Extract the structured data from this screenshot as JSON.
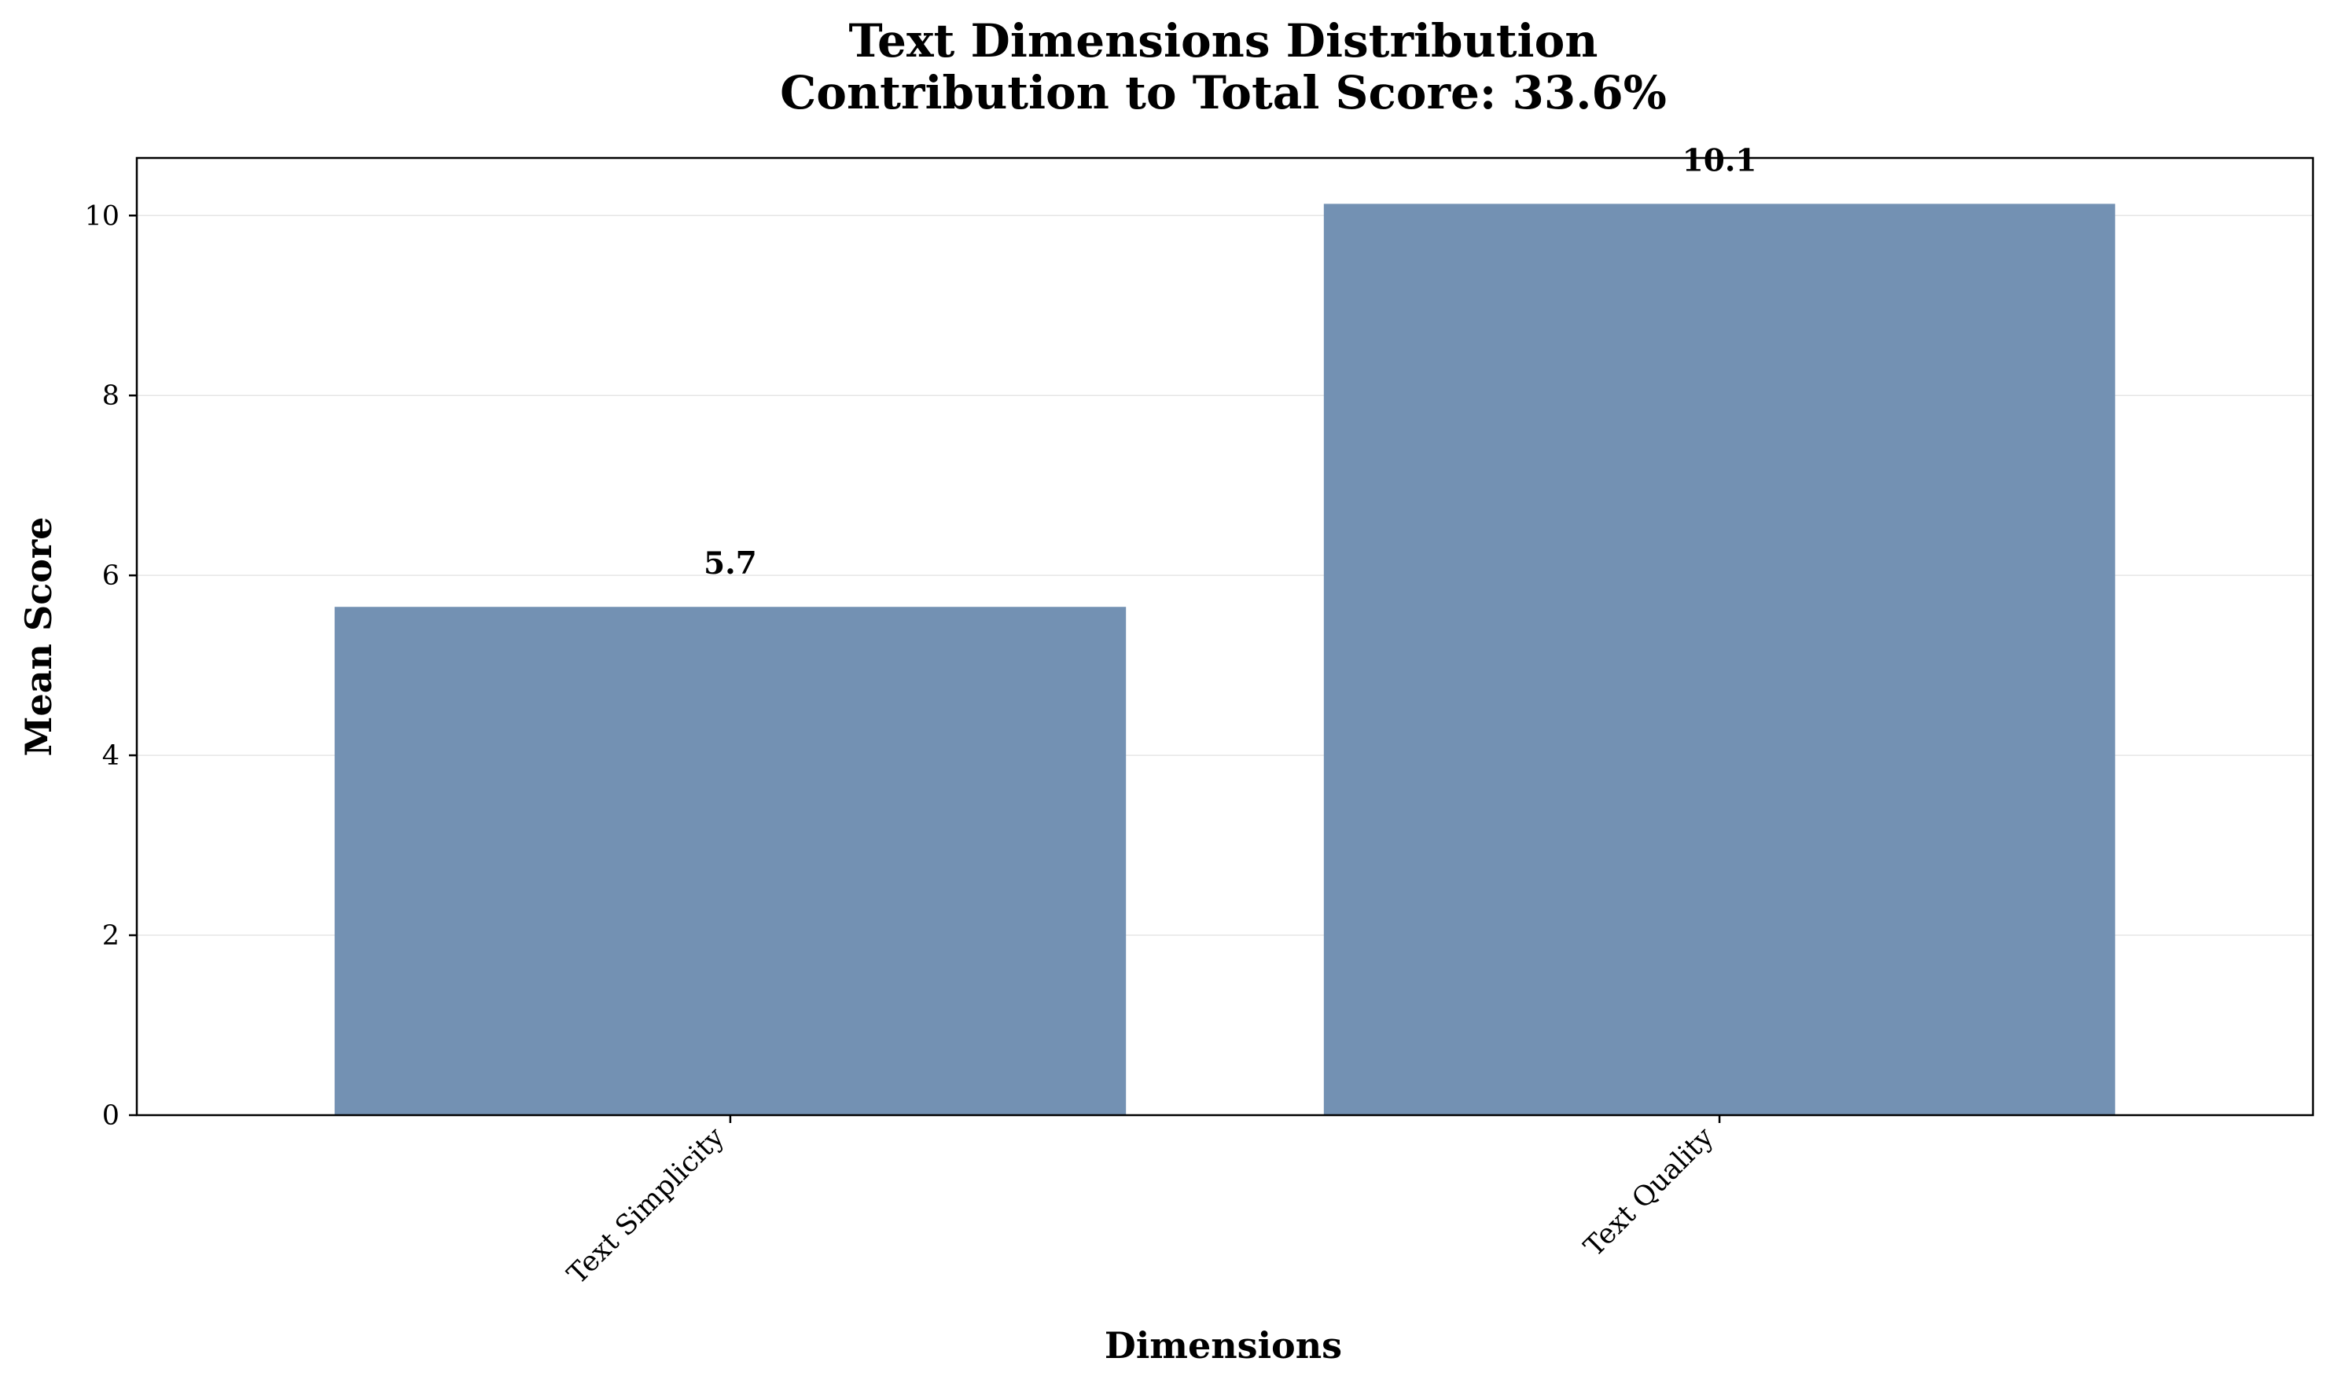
{
  "chart_data": {
    "type": "bar",
    "title": "Text Dimensions Distribution",
    "subtitle": "Contribution to Total Score: 33.6%",
    "xlabel": "Dimensions",
    "ylabel": "Mean Score",
    "categories": [
      "Text Simplicity",
      "Text Quality"
    ],
    "values": [
      5.65,
      10.13
    ],
    "data_labels": [
      "5.7",
      "10.1"
    ],
    "y_ticks": [
      0,
      2,
      4,
      6,
      8,
      10
    ],
    "y_tick_labels": [
      "0",
      "2",
      "4",
      "6",
      "8",
      "10"
    ],
    "ylim": [
      0,
      10.64
    ],
    "grid": "y",
    "legend": "none",
    "colors": {
      "bar": "#7391b3",
      "grid": "#e6e6e6",
      "axis": "#000000"
    }
  }
}
